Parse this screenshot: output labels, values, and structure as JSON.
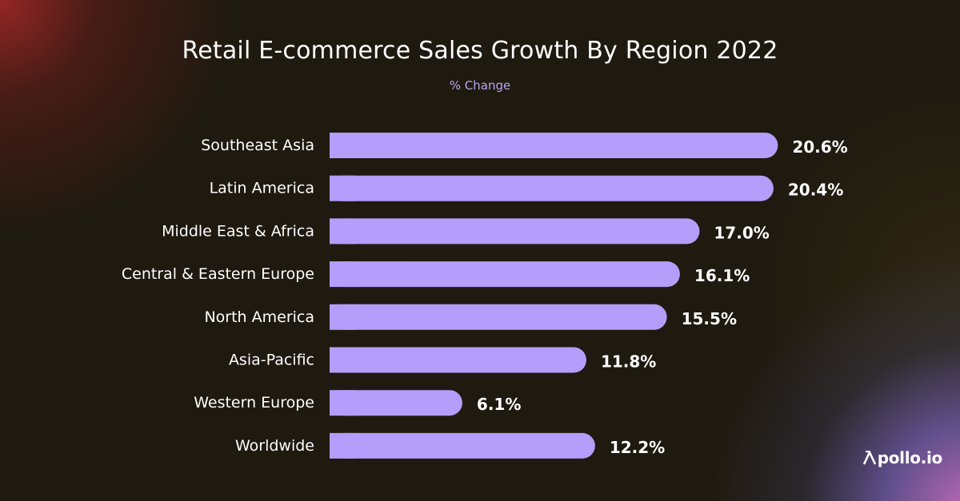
{
  "chart_data": {
    "type": "bar",
    "orientation": "horizontal",
    "title": "Retail E-commerce Sales Growth By Region 2022",
    "subtitle": "% Change",
    "categories": [
      "Southeast Asia",
      "Latin America",
      "Middle East & Africa",
      "Central & Eastern Europe",
      "North America",
      "Asia-Pacific",
      "Western Europe",
      "Worldwide"
    ],
    "values": [
      20.6,
      20.4,
      17.0,
      16.1,
      15.5,
      11.8,
      6.1,
      12.2
    ],
    "value_labels": [
      "20.6%",
      "20.4%",
      "17.0%",
      "16.1%",
      "15.5%",
      "11.8%",
      "6.1%",
      "12.2%"
    ],
    "bar_color": "#b49efc",
    "grid": false
  },
  "brand": {
    "logo_text": "Apollo.io",
    "logo_tail": "pollo.io"
  }
}
